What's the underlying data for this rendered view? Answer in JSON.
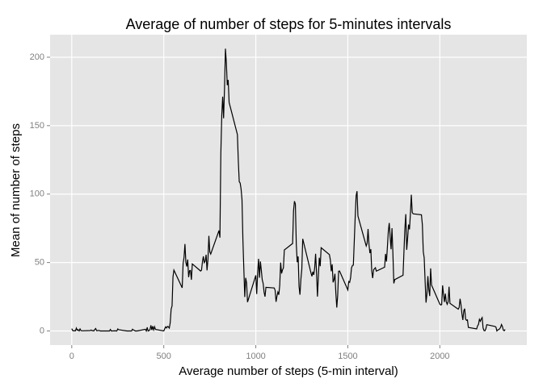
{
  "chart_data": {
    "type": "line",
    "title": "Average of number of steps for 5-minutes intervals",
    "x_label": "Average number of steps (5-min interval)",
    "y_label": "Mean of number of steps",
    "color": "#000000",
    "grid": true,
    "xlim": [
      -117.75,
      2472.75
    ],
    "ylim": [
      -10.31,
      216.48
    ],
    "xticks": [
      0,
      500,
      1000,
      1500,
      2000
    ],
    "yticks": [
      0,
      50,
      100,
      150,
      200
    ],
    "x": [
      0,
      5,
      10,
      15,
      20,
      25,
      30,
      35,
      40,
      45,
      50,
      55,
      100,
      105,
      110,
      115,
      120,
      125,
      130,
      135,
      140,
      145,
      150,
      155,
      200,
      205,
      210,
      215,
      220,
      225,
      230,
      235,
      240,
      245,
      250,
      255,
      300,
      305,
      310,
      315,
      320,
      325,
      330,
      335,
      340,
      345,
      350,
      355,
      400,
      405,
      410,
      415,
      420,
      425,
      430,
      435,
      440,
      445,
      450,
      455,
      500,
      505,
      510,
      515,
      520,
      525,
      530,
      535,
      540,
      545,
      550,
      555,
      600,
      605,
      610,
      615,
      620,
      625,
      630,
      635,
      640,
      645,
      650,
      655,
      700,
      705,
      710,
      715,
      720,
      725,
      730,
      735,
      740,
      745,
      750,
      755,
      800,
      805,
      810,
      815,
      820,
      825,
      830,
      835,
      840,
      845,
      850,
      855,
      900,
      905,
      910,
      915,
      920,
      925,
      930,
      935,
      940,
      945,
      950,
      955,
      1000,
      1005,
      1010,
      1015,
      1020,
      1025,
      1030,
      1035,
      1040,
      1045,
      1050,
      1055,
      1100,
      1105,
      1110,
      1115,
      1120,
      1125,
      1130,
      1135,
      1140,
      1145,
      1150,
      1155,
      1200,
      1205,
      1210,
      1215,
      1220,
      1225,
      1230,
      1235,
      1240,
      1245,
      1250,
      1255,
      1300,
      1305,
      1310,
      1315,
      1320,
      1325,
      1330,
      1335,
      1340,
      1345,
      1350,
      1355,
      1400,
      1405,
      1410,
      1415,
      1420,
      1425,
      1430,
      1435,
      1440,
      1445,
      1450,
      1455,
      1500,
      1505,
      1510,
      1515,
      1520,
      1525,
      1530,
      1535,
      1540,
      1545,
      1550,
      1555,
      1600,
      1605,
      1610,
      1615,
      1620,
      1625,
      1630,
      1635,
      1640,
      1645,
      1650,
      1655,
      1700,
      1705,
      1710,
      1715,
      1720,
      1725,
      1730,
      1735,
      1740,
      1745,
      1750,
      1755,
      1800,
      1805,
      1810,
      1815,
      1820,
      1825,
      1830,
      1835,
      1840,
      1845,
      1850,
      1855,
      1900,
      1905,
      1910,
      1915,
      1920,
      1925,
      1930,
      1935,
      1940,
      1945,
      1950,
      1955,
      2000,
      2005,
      2010,
      2015,
      2020,
      2025,
      2030,
      2035,
      2040,
      2045,
      2050,
      2055,
      2100,
      2105,
      2110,
      2115,
      2120,
      2125,
      2130,
      2135,
      2140,
      2145,
      2150,
      2155,
      2200,
      2205,
      2210,
      2215,
      2220,
      2225,
      2230,
      2235,
      2240,
      2245,
      2250,
      2255,
      2300,
      2305,
      2310,
      2315,
      2320,
      2325,
      2330,
      2335,
      2340,
      2345,
      2350,
      2355
    ],
    "values": [
      1.7,
      0.3,
      0.1,
      0.2,
      0.1,
      2.1,
      0.5,
      0.9,
      0,
      1.5,
      0.3,
      0.1,
      0.3,
      0.7,
      0.2,
      0.3,
      0,
      1.1,
      1.8,
      0.2,
      0.2,
      0.4,
      0.3,
      0,
      0,
      0,
      1.1,
      0,
      0,
      0.1,
      0,
      0.2,
      0,
      0,
      1.5,
      0.9,
      0,
      0,
      0,
      0,
      0,
      0,
      1.3,
      0.7,
      0.5,
      0,
      0,
      0,
      1.2,
      0,
      2.6,
      0,
      0.3,
      0.9,
      4.1,
      0.7,
      3.5,
      0.8,
      3.1,
      1.1,
      0,
      1.6,
      3,
      2.2,
      3.3,
      3,
      2.1,
      6.1,
      16,
      18.3,
      39.5,
      44.5,
      31.5,
      49.3,
      53.8,
      63.5,
      50,
      47.1,
      52.2,
      39.3,
      44,
      44.2,
      37.4,
      49,
      43.8,
      44.4,
      50.5,
      54.5,
      49.9,
      51,
      55.7,
      44.3,
      52.3,
      69.5,
      57.8,
      56.2,
      73.4,
      68.2,
      129.4,
      157.5,
      171.2,
      155.4,
      177.3,
      206.2,
      195.9,
      179.6,
      183.4,
      167,
      143.5,
      124,
      109.1,
      108.1,
      103.7,
      96,
      66.2,
      45.2,
      24.8,
      38.8,
      35,
      21.1,
      40.6,
      27,
      42.4,
      52.7,
      38.9,
      50.8,
      44.3,
      37.4,
      34.7,
      28.3,
      25.1,
      31.9,
      31.4,
      29.7,
      21.3,
      25.5,
      28.4,
      26.5,
      33.4,
      50,
      42,
      44.6,
      46,
      59.2,
      63.9,
      87.7,
      94.8,
      92.8,
      63.4,
      50.2,
      54.5,
      32.4,
      26.5,
      37.7,
      45.1,
      67.3,
      42.3,
      39.9,
      43.3,
      41,
      46.2,
      56.4,
      42.8,
      25.1,
      40,
      53.5,
      47.3,
      60.8,
      55.8,
      52,
      43.6,
      48.7,
      35.5,
      37.5,
      41.8,
      27.5,
      17.1,
      26.1,
      43.6,
      43.8,
      30,
      36.1,
      35.5,
      38.8,
      46,
      47.8,
      48.1,
      65.3,
      82.9,
      98.7,
      102.1,
      84,
      62.1,
      64.1,
      74.5,
      63.2,
      56.9,
      59.8,
      43.9,
      38.6,
      44.7,
      45.5,
      46.2,
      43.7,
      46.6,
      56.3,
      50.7,
      61.2,
      72.7,
      78.9,
      68.9,
      59.7,
      75.1,
      56.5,
      34.8,
      37.5,
      40.7,
      58,
      74.7,
      85.3,
      59.3,
      67.8,
      77.7,
      74.2,
      85.3,
      99.5,
      86.6,
      85.6,
      84.9,
      77.8,
      58,
      53.4,
      36.3,
      20.7,
      27.4,
      40,
      30.2,
      25.5,
      45.7,
      33.5,
      19.6,
      19,
      19.3,
      33.3,
      26.8,
      21.2,
      27.3,
      21.3,
      19.5,
      21.3,
      32.3,
      20.2,
      15.9,
      17.2,
      23.5,
      19.2,
      12.5,
      8,
      14.7,
      16.3,
      8.7,
      7.8,
      8.1,
      2.6,
      1.5,
      3.7,
      4.8,
      8.5,
      7.1,
      8.7,
      9.8,
      2.2,
      0.3,
      0.1,
      1.6,
      4.6,
      3.3,
      2.8,
      0,
      0.8,
      1,
      1.6,
      2.6,
      4.7,
      3.3,
      0.6,
      0.2,
      1.1
    ]
  }
}
